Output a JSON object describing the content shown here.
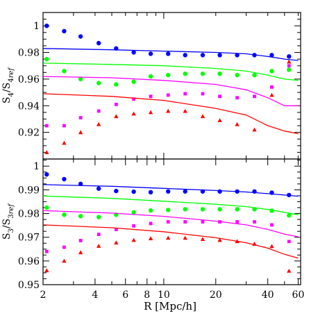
{
  "chart_data": [
    {
      "type": "scatter",
      "panel": "top",
      "ylabel_main": "S",
      "ylabel_main_sub": "4",
      "ylabel_sep": "/S",
      "ylabel_ref_sub": "4",
      "ylabel_ref_tag": "ref",
      "xscale": "log",
      "xlim": [
        2,
        62
      ],
      "ylim": [
        0.9,
        1.01
      ],
      "yticks": [
        0.92,
        0.94,
        0.96,
        0.98,
        1
      ],
      "ytick_labels": [
        "0.92",
        "0.94",
        "0.96",
        "0.98",
        "1"
      ],
      "series": [
        {
          "color": "#0000ff",
          "marker": "circle",
          "x": [
            2.1,
            2.65,
            3.3,
            4.2,
            5.3,
            6.7,
            8.4,
            10.6,
            13.3,
            16.8,
            21.1,
            26.6,
            33.5,
            42.2,
            53.1
          ],
          "y": [
            1.0,
            0.996,
            0.992,
            0.987,
            0.983,
            0.98,
            0.979,
            0.979,
            0.978,
            0.978,
            0.978,
            0.978,
            0.978,
            0.978,
            0.977
          ],
          "line_x": [
            2,
            5,
            10,
            20,
            30,
            40,
            50,
            60
          ],
          "line_y": [
            0.983,
            0.982,
            0.981,
            0.98,
            0.979,
            0.977,
            0.975,
            0.974
          ]
        },
        {
          "color": "#00ff00",
          "marker": "circle",
          "x": [
            2.1,
            2.65,
            3.3,
            4.2,
            5.3,
            6.7,
            8.4,
            10.6,
            13.3,
            16.8,
            21.1,
            26.6,
            33.5,
            42.2,
            53.1
          ],
          "y": [
            0.975,
            0.966,
            0.96,
            0.957,
            0.956,
            0.958,
            0.962,
            0.963,
            0.964,
            0.964,
            0.964,
            0.963,
            0.963,
            0.966,
            0.967
          ],
          "line_x": [
            2,
            5,
            10,
            20,
            30,
            40,
            50,
            60
          ],
          "line_y": [
            0.972,
            0.971,
            0.97,
            0.968,
            0.966,
            0.963,
            0.96,
            0.959
          ]
        },
        {
          "color": "#ff00ff",
          "marker": "square",
          "x": [
            2.1,
            2.65,
            3.3,
            4.2,
            5.3,
            6.7,
            8.4,
            10.6,
            13.3,
            16.8,
            21.1,
            26.6,
            33.5,
            42.2,
            53.1
          ],
          "y": [
            0.925,
            0.925,
            0.931,
            0.936,
            0.941,
            0.945,
            0.947,
            0.948,
            0.949,
            0.949,
            0.947,
            0.946,
            0.947,
            0.954,
            0.97
          ],
          "line_x": [
            2,
            5,
            10,
            20,
            30,
            40,
            50,
            60
          ],
          "line_y": [
            0.962,
            0.961,
            0.959,
            0.956,
            0.952,
            0.946,
            0.94,
            0.94
          ]
        },
        {
          "color": "#ff0000",
          "marker": "triangle",
          "x": [
            2.1,
            2.65,
            3.3,
            4.2,
            5.3,
            6.7,
            8.4,
            10.6,
            13.3,
            16.8,
            21.1,
            26.6,
            33.5,
            42.2,
            53.1
          ],
          "y": [
            0.905,
            0.912,
            0.92,
            0.926,
            0.932,
            0.934,
            0.935,
            0.936,
            0.936,
            0.932,
            0.929,
            0.926,
            0.922,
            0.948,
            0.973
          ],
          "line_x": [
            2,
            5,
            10,
            20,
            30,
            40,
            50,
            60
          ],
          "line_y": [
            0.949,
            0.947,
            0.944,
            0.938,
            0.933,
            0.925,
            0.921,
            0.919
          ]
        }
      ]
    },
    {
      "type": "scatter",
      "panel": "bottom",
      "ylabel_main": "S",
      "ylabel_main_sub": "3",
      "ylabel_sep": "/S",
      "ylabel_ref_sub": "3",
      "ylabel_ref_tag": "ref",
      "xlabel": "R [Mpc/h]",
      "xscale": "log",
      "xlim": [
        2,
        62
      ],
      "ylim": [
        0.95,
        1.003
      ],
      "yticks": [
        0.95,
        0.96,
        0.97,
        0.98,
        0.99,
        1
      ],
      "ytick_labels": [
        "0.95",
        "0.96",
        "0.97",
        "0.98",
        "0.99",
        "1"
      ],
      "xticks": [
        2,
        4,
        6,
        8,
        10,
        20,
        40,
        60
      ],
      "xtick_labels": [
        "2",
        "4",
        "6",
        "8",
        "10",
        "20",
        "40",
        "60"
      ],
      "series": [
        {
          "color": "#0000ff",
          "marker": "circle",
          "x": [
            2.1,
            2.65,
            3.3,
            4.2,
            5.3,
            6.7,
            8.4,
            10.6,
            13.3,
            16.8,
            21.1,
            26.6,
            33.5,
            42.2,
            53.1
          ],
          "y": [
            0.9965,
            0.9945,
            0.9925,
            0.9905,
            0.9895,
            0.9892,
            0.989,
            0.9893,
            0.9893,
            0.9893,
            0.9893,
            0.9893,
            0.9893,
            0.9888,
            0.9878
          ],
          "line_x": [
            2,
            5,
            10,
            20,
            30,
            40,
            50,
            60
          ],
          "line_y": [
            0.9922,
            0.9915,
            0.9906,
            0.9897,
            0.9891,
            0.9884,
            0.9878,
            0.9873
          ]
        },
        {
          "color": "#00ff00",
          "marker": "circle",
          "x": [
            2.1,
            2.65,
            3.3,
            4.2,
            5.3,
            6.7,
            8.4,
            10.6,
            13.3,
            16.8,
            21.1,
            26.6,
            33.5,
            42.2,
            53.1
          ],
          "y": [
            0.9825,
            0.9795,
            0.9789,
            0.9785,
            0.9795,
            0.9805,
            0.9813,
            0.9815,
            0.9818,
            0.9818,
            0.9818,
            0.9818,
            0.9818,
            0.9812,
            0.9792
          ],
          "line_x": [
            2,
            5,
            10,
            20,
            30,
            40,
            50,
            60
          ],
          "line_y": [
            0.9874,
            0.9864,
            0.9852,
            0.9839,
            0.9829,
            0.9817,
            0.9805,
            0.9795
          ]
        },
        {
          "color": "#ff00ff",
          "marker": "square",
          "x": [
            2.1,
            2.65,
            3.3,
            4.2,
            5.3,
            6.7,
            8.4,
            10.6,
            13.3,
            16.8,
            21.1,
            26.6,
            33.5,
            42.2,
            53.1
          ],
          "y": [
            0.964,
            0.9658,
            0.9686,
            0.9712,
            0.9733,
            0.9748,
            0.9758,
            0.9765,
            0.9765,
            0.9765,
            0.9765,
            0.9765,
            0.9765,
            0.9752,
            0.9682
          ],
          "line_x": [
            2,
            5,
            10,
            20,
            30,
            40,
            50,
            60
          ],
          "line_y": [
            0.9812,
            0.9802,
            0.9788,
            0.9768,
            0.9752,
            0.9733,
            0.9713,
            0.9702
          ]
        },
        {
          "color": "#ff0000",
          "marker": "triangle",
          "x": [
            2.1,
            2.65,
            3.3,
            4.2,
            5.3,
            6.7,
            8.4,
            10.6,
            13.3,
            16.8,
            21.1,
            26.6,
            33.5,
            42.2,
            53.1
          ],
          "y": [
            0.956,
            0.96,
            0.9636,
            0.9663,
            0.9677,
            0.9688,
            0.9695,
            0.9697,
            0.9697,
            0.9692,
            0.9688,
            0.9683,
            0.9672,
            0.9662,
            0.9558
          ],
          "line_x": [
            2,
            5,
            10,
            20,
            30,
            40,
            50,
            60
          ],
          "line_y": [
            0.9752,
            0.974,
            0.9723,
            0.9698,
            0.9677,
            0.9654,
            0.9628,
            0.9612
          ]
        }
      ]
    }
  ]
}
